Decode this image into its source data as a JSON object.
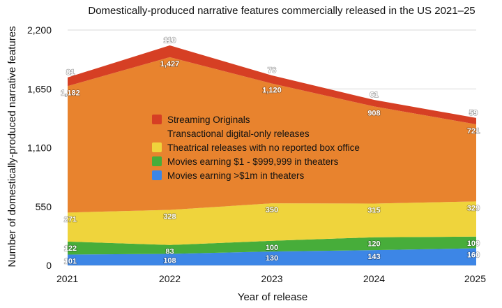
{
  "chart_data": {
    "type": "area",
    "stacked": true,
    "title": "Domestically-produced narrative features commercially released in the US 2021–25",
    "xlabel": "Year of release",
    "ylabel": "Number of domestically-produced narrative features",
    "x": [
      "2021",
      "2022",
      "2023",
      "2024",
      "2025"
    ],
    "ylim": [
      0,
      2200
    ],
    "yticks": [
      0,
      550,
      1100,
      1650,
      2200
    ],
    "ytick_labels": [
      "0",
      "550",
      "1,100",
      "1,650",
      "2,200"
    ],
    "grid": true,
    "legend_position": "center",
    "series": [
      {
        "name": "Movies earning >$1m in theaters",
        "color": "#3d86e6",
        "values": [
          101,
          108,
          130,
          143,
          160
        ],
        "labels": [
          "101",
          "108",
          "130",
          "143",
          "160"
        ]
      },
      {
        "name": "Movies earning $1 - $999,999 in theaters",
        "color": "#47ad3a",
        "values": [
          122,
          83,
          100,
          120,
          109
        ],
        "labels": [
          "122",
          "83",
          "100",
          "120",
          "109"
        ]
      },
      {
        "name": "Theatrical releases with no reported box office",
        "color": "#efd43c",
        "values": [
          271,
          328,
          350,
          315,
          329
        ],
        "labels": [
          "271",
          "328",
          "350",
          "315",
          "329"
        ]
      },
      {
        "name": "Transactional digital-only releases",
        "color": "#e8832e",
        "values": [
          1182,
          1427,
          1120,
          908,
          721
        ],
        "labels": [
          "1,182",
          "1,427",
          "1,120",
          "908",
          "721"
        ]
      },
      {
        "name": "Streaming Originals",
        "color": "#d63f24",
        "values": [
          81,
          110,
          76,
          61,
          59
        ],
        "labels": [
          "81",
          "110",
          "76",
          "61",
          "59"
        ]
      }
    ]
  }
}
